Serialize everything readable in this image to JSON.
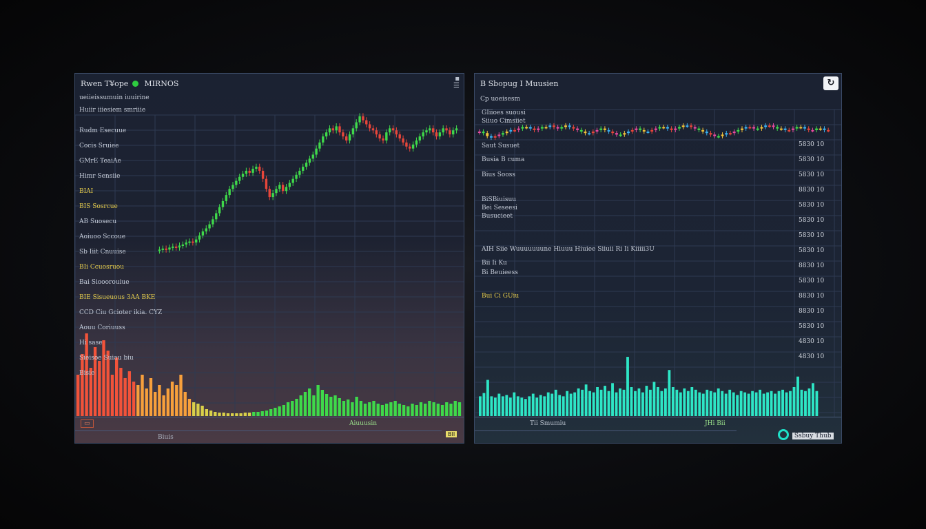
{
  "left": {
    "title": "Rwen T¥ope",
    "subtitle": "MIRNOS",
    "header_line": "ueiieissumuin iuuirine",
    "sub_header": "Huiir iiiesiem smriiie",
    "rows": [
      {
        "label": "Rudm Esecuue",
        "yellow": false
      },
      {
        "label": "Cocis Sruiee",
        "yellow": false
      },
      {
        "label": "GMrE TeaiAe",
        "yellow": false
      },
      {
        "label": "Himr Sensiie",
        "yellow": false
      },
      {
        "label": "BIAI",
        "yellow": true
      },
      {
        "label": "BIS Sosrcue",
        "yellow": true
      },
      {
        "label": "AB Suosecu",
        "yellow": false
      },
      {
        "label": "Aoiuoo Sccoue",
        "yellow": false
      },
      {
        "label": "Sb Iiit Cnuuise",
        "yellow": false
      },
      {
        "label": "BIi Ccuosruou",
        "yellow": true
      },
      {
        "label": "Bai Siooorouiue",
        "yellow": false
      },
      {
        "label": "BIE Sisueuous 3AA BKE",
        "yellow": true
      },
      {
        "label": "CCD Ciu Gcioter ikia. CYZ",
        "yellow": false
      },
      {
        "label": "Aouu Coriuuss",
        "yellow": false
      },
      {
        "label": "Hi sase",
        "yellow": false
      },
      {
        "label": "Sieisoe Suiau biu",
        "yellow": false
      },
      {
        "label": "Bisie",
        "yellow": false
      }
    ],
    "footer_center": "Aiuuusin",
    "footer_bottom": "Biuis",
    "footer_badge": "BII"
  },
  "right": {
    "title": "B Sbopug I Muusien",
    "header_line": "Cp uoeisesm",
    "labels": [
      {
        "text": "GIiioes suousi",
        "yellow": false
      },
      {
        "text": "Siiuo Cimsiiet",
        "yellow": false
      },
      {
        "text": "Saut Susuet",
        "yellow": false
      },
      {
        "text": "Busia B cuma",
        "yellow": false
      },
      {
        "text": "Bius Sooss",
        "yellow": false
      },
      {
        "text": "BiSBiuisuu",
        "yellow": false
      },
      {
        "text": "Bei Seseesi",
        "yellow": false
      },
      {
        "text": "Busucieet",
        "yellow": false
      },
      {
        "text": "AIH Siie Wuuuuuuune Hiuuu Hiuiee Siiuii Ri Ii Kiiiii3U",
        "yellow": false
      },
      {
        "text": "Bii Ii Ku",
        "yellow": false
      },
      {
        "text": "Bi Beuieess",
        "yellow": false
      },
      {
        "text": "Bui Ci GUiu",
        "yellow": true
      }
    ],
    "yticks": [
      "5830 10",
      "5830 10",
      "5830 10",
      "8830 10",
      "5830 10",
      "5830 10",
      "5830 10",
      "5830 10",
      "8830 10",
      "5830 10",
      "8830 10",
      "8830 10",
      "5830 10",
      "4830 10",
      "4830 10"
    ],
    "footer_left": "Tii Smumiu",
    "footer_right": "JHi Bii",
    "logo_text": "Ssbuy Thub"
  },
  "chart_data": [
    {
      "type": "candlestick",
      "title": "Rwen T¥ope",
      "x": [
        1,
        2,
        3,
        4,
        5,
        6,
        7,
        8,
        9,
        10,
        11,
        12,
        13,
        14,
        15,
        16,
        17,
        18,
        19,
        20,
        21,
        22,
        23,
        24,
        25,
        26,
        27,
        28,
        29,
        30,
        31,
        32,
        33,
        34,
        35,
        36,
        37,
        38,
        39,
        40,
        41,
        42,
        43,
        44,
        45,
        46,
        47,
        48,
        49,
        50,
        51,
        52,
        53,
        54,
        55,
        56,
        57,
        58,
        59,
        60,
        61,
        62,
        63,
        64,
        65,
        66,
        67,
        68,
        69,
        70,
        71,
        72,
        73,
        74,
        75,
        76,
        77,
        78,
        79,
        80,
        81,
        82,
        83,
        84,
        85,
        86,
        87,
        88,
        89,
        90
      ],
      "close": [
        10,
        11,
        10,
        12,
        13,
        12,
        14,
        15,
        17,
        18,
        17,
        20,
        24,
        28,
        31,
        35,
        40,
        46,
        52,
        58,
        64,
        70,
        74,
        78,
        82,
        85,
        88,
        86,
        90,
        92,
        88,
        80,
        70,
        62,
        66,
        70,
        74,
        68,
        72,
        76,
        80,
        84,
        88,
        92,
        96,
        100,
        104,
        110,
        116,
        122,
        126,
        130,
        128,
        132,
        126,
        122,
        118,
        124,
        130,
        136,
        142,
        138,
        134,
        130,
        128,
        124,
        120,
        118,
        126,
        130,
        128,
        124,
        120,
        116,
        112,
        110,
        114,
        118,
        122,
        126,
        128,
        130,
        126,
        122,
        126,
        130,
        128,
        124,
        128,
        130
      ],
      "ylim": [
        0,
        150
      ],
      "grid": true
    },
    {
      "type": "bar",
      "title": "Rwen T¥ope volume",
      "values": [
        60,
        90,
        120,
        70,
        100,
        80,
        110,
        95,
        60,
        85,
        70,
        55,
        65,
        50,
        45,
        60,
        40,
        55,
        35,
        45,
        30,
        40,
        50,
        45,
        60,
        35,
        25,
        20,
        18,
        15,
        10,
        8,
        6,
        5,
        5,
        4,
        4,
        4,
        4,
        5,
        5,
        6,
        6,
        7,
        8,
        10,
        12,
        14,
        16,
        20,
        22,
        25,
        30,
        35,
        40,
        30,
        45,
        38,
        32,
        28,
        30,
        26,
        22,
        24,
        20,
        28,
        22,
        18,
        20,
        22,
        18,
        16,
        18,
        20,
        22,
        18,
        16,
        14,
        18,
        16,
        20,
        18,
        22,
        20,
        18,
        16,
        20,
        18,
        22,
        20
      ],
      "ylim": [
        0,
        130
      ],
      "grid": false
    },
    {
      "type": "candlestick",
      "title": "B Sbopug I Muusien",
      "x": [
        1,
        2,
        3,
        4,
        5,
        6,
        7,
        8,
        9,
        10,
        11,
        12,
        13,
        14,
        15,
        16,
        17,
        18,
        19,
        20,
        21,
        22,
        23,
        24,
        25,
        26,
        27,
        28,
        29,
        30,
        31,
        32,
        33,
        34,
        35,
        36,
        37,
        38,
        39,
        40,
        41,
        42,
        43,
        44,
        45,
        46,
        47,
        48,
        49,
        50,
        51,
        52,
        53,
        54,
        55,
        56,
        57,
        58,
        59,
        60,
        61,
        62,
        63,
        64,
        65,
        66,
        67,
        68,
        69,
        70,
        71,
        72,
        73,
        74,
        75,
        76,
        77,
        78,
        79,
        80,
        81,
        82,
        83,
        84,
        85,
        86,
        87,
        88,
        89,
        90
      ],
      "close": [
        60,
        58,
        54,
        52,
        54,
        56,
        58,
        60,
        62,
        62,
        64,
        66,
        66,
        64,
        62,
        64,
        66,
        66,
        68,
        66,
        64,
        66,
        68,
        66,
        64,
        62,
        60,
        58,
        58,
        60,
        62,
        64,
        62,
        60,
        58,
        56,
        56,
        58,
        60,
        62,
        64,
        62,
        60,
        60,
        62,
        64,
        66,
        66,
        64,
        62,
        64,
        66,
        68,
        68,
        66,
        64,
        62,
        60,
        58,
        56,
        54,
        54,
        56,
        58,
        58,
        60,
        62,
        64,
        66,
        66,
        64,
        64,
        66,
        68,
        68,
        66,
        64,
        64,
        62,
        62,
        64,
        66,
        66,
        64,
        62,
        62,
        64,
        64,
        62,
        62
      ],
      "ylim": [
        0,
        100
      ],
      "grid": true
    },
    {
      "type": "bar",
      "title": "B Sbopug I Muusien volume",
      "values": [
        30,
        35,
        55,
        30,
        28,
        34,
        30,
        32,
        28,
        36,
        30,
        28,
        26,
        30,
        34,
        28,
        32,
        30,
        36,
        34,
        40,
        32,
        30,
        38,
        34,
        36,
        42,
        40,
        48,
        38,
        36,
        44,
        40,
        46,
        38,
        50,
        36,
        42,
        40,
        90,
        44,
        38,
        42,
        36,
        46,
        40,
        52,
        44,
        38,
        42,
        70,
        44,
        40,
        36,
        42,
        38,
        44,
        40,
        36,
        34,
        40,
        38,
        36,
        42,
        38,
        34,
        40,
        36,
        32,
        38,
        36,
        34,
        38,
        36,
        40,
        34,
        36,
        38,
        34,
        38,
        40,
        36,
        38,
        44,
        60,
        40,
        38,
        42,
        50,
        38
      ],
      "ylim": [
        0,
        110
      ],
      "grid": false
    }
  ]
}
